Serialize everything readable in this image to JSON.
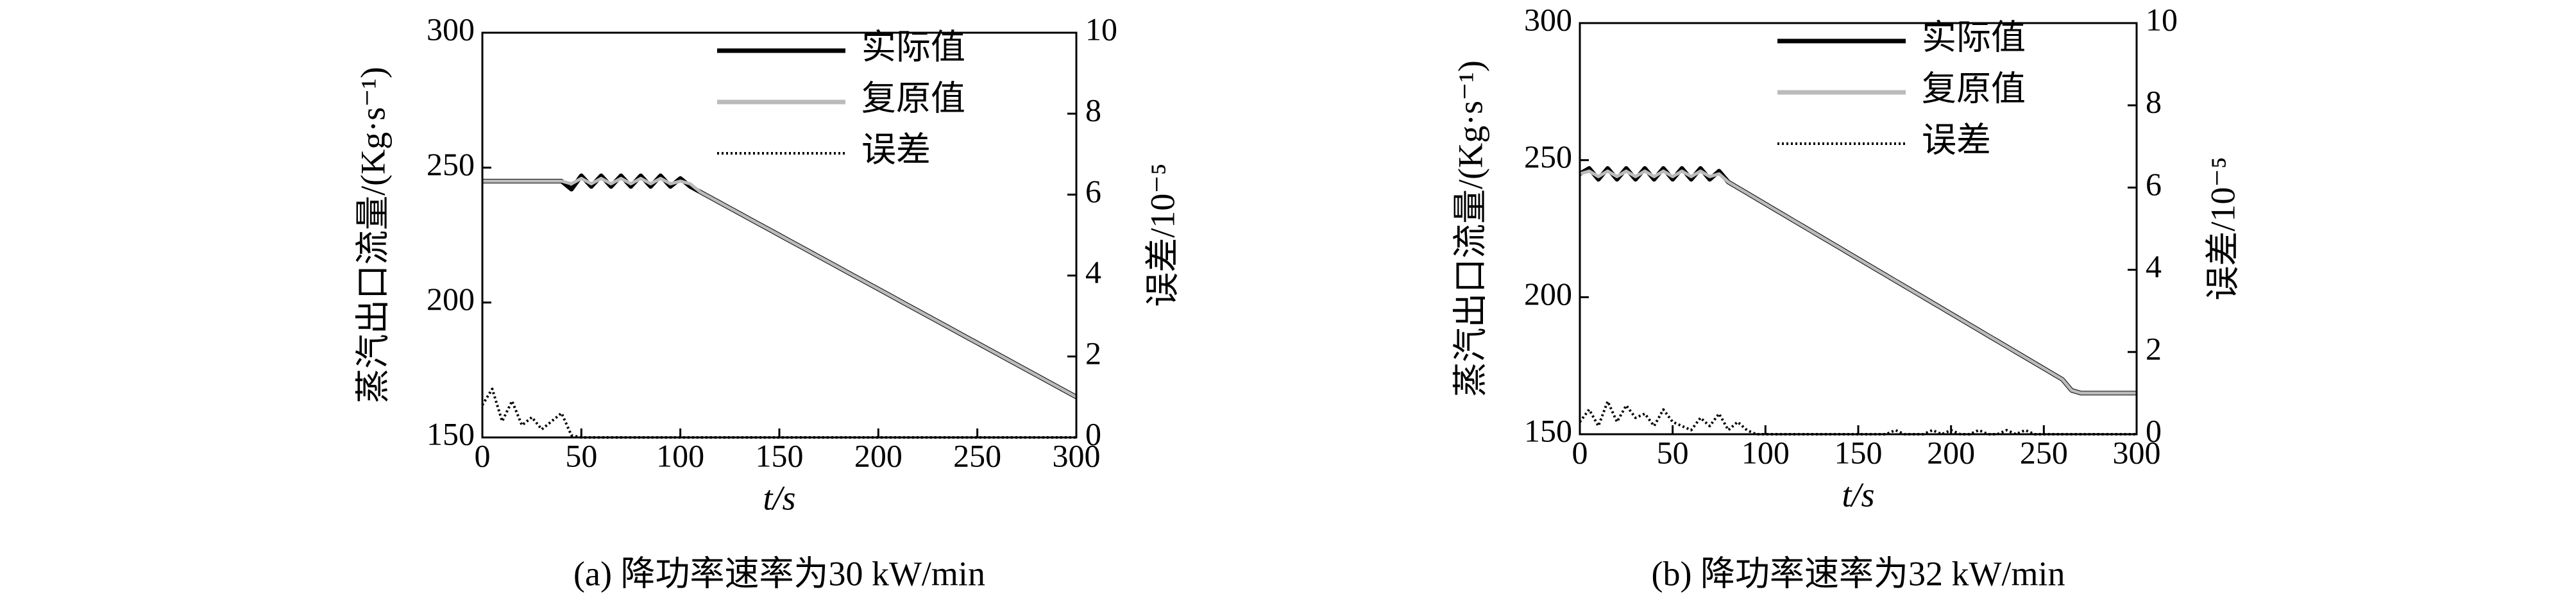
{
  "chart_data": [
    {
      "type": "line",
      "caption": "(a) 降功率速率为30 kW/min",
      "x_label": "t/s",
      "y_label": "蒸汽出口流量/(Kg·s⁻¹)",
      "y2_label": "误差/10⁻⁵",
      "xlim": [
        0,
        300
      ],
      "xticks": [
        0,
        50,
        100,
        150,
        200,
        250,
        300
      ],
      "ylim": [
        150,
        300
      ],
      "yticks": [
        150,
        200,
        250,
        300
      ],
      "y2lim": [
        0,
        10
      ],
      "y2ticks": [
        0,
        2,
        4,
        6,
        8,
        10
      ],
      "x": [
        0,
        5,
        10,
        15,
        20,
        25,
        30,
        35,
        40,
        45,
        50,
        55,
        60,
        65,
        70,
        75,
        80,
        85,
        90,
        95,
        100,
        105,
        110,
        115,
        120,
        125,
        130,
        135,
        140,
        145,
        150,
        155,
        160,
        165,
        170,
        175,
        180,
        185,
        190,
        195,
        200,
        205,
        210,
        215,
        220,
        225,
        230,
        235,
        240,
        245,
        250,
        255,
        260,
        265,
        270,
        275,
        280,
        285,
        290,
        295,
        300
      ],
      "series": [
        {
          "name": "实际值",
          "color": "#000000",
          "style": "solid",
          "values": [
            245,
            245,
            245,
            245,
            245,
            245,
            245,
            245,
            245,
            242,
            247,
            243,
            247,
            243,
            247,
            243,
            247,
            243,
            247,
            243,
            246,
            243,
            241,
            239,
            237,
            235,
            233,
            231,
            229,
            227,
            225,
            223,
            221,
            219,
            217,
            215,
            213,
            211,
            209,
            207,
            205,
            203,
            201,
            199,
            197,
            195,
            193,
            191,
            189,
            187,
            185,
            183,
            181,
            179,
            177,
            175,
            173,
            171,
            169,
            167,
            165
          ]
        },
        {
          "name": "复原值",
          "color": "#bbbbbb",
          "style": "solid",
          "values": [
            245,
            245,
            245,
            245,
            245,
            245,
            245,
            245,
            245,
            244,
            246,
            244,
            246,
            244,
            246,
            244,
            246,
            244,
            246,
            244,
            245,
            244,
            241,
            239,
            237,
            235,
            233,
            231,
            229,
            227,
            225,
            223,
            221,
            219,
            217,
            215,
            213,
            211,
            209,
            207,
            205,
            203,
            201,
            199,
            197,
            195,
            193,
            191,
            189,
            187,
            185,
            183,
            181,
            179,
            177,
            175,
            173,
            171,
            169,
            167,
            165
          ]
        },
        {
          "name": "误差",
          "color": "#000000",
          "style": "dotted",
          "axis": "y2",
          "values": [
            0.8,
            1.2,
            0.4,
            0.9,
            0.3,
            0.5,
            0.2,
            0.4,
            0.6,
            0.05,
            0,
            0,
            0,
            0,
            0,
            0,
            0,
            0,
            0,
            0,
            0,
            0,
            0,
            0,
            0,
            0,
            0,
            0,
            0,
            0,
            0,
            0,
            0,
            0,
            0,
            0,
            0,
            0,
            0,
            0,
            0,
            0,
            0,
            0,
            0,
            0,
            0,
            0,
            0,
            0,
            0,
            0,
            0,
            0,
            0,
            0,
            0,
            0,
            0,
            0,
            0
          ]
        }
      ]
    },
    {
      "type": "line",
      "caption": "(b) 降功率速率为32 kW/min",
      "x_label": "t/s",
      "y_label": "蒸汽出口流量/(Kg·s⁻¹)",
      "y2_label": "误差/10⁻⁵",
      "xlim": [
        0,
        300
      ],
      "xticks": [
        0,
        50,
        100,
        150,
        200,
        250,
        300
      ],
      "ylim": [
        150,
        300
      ],
      "yticks": [
        150,
        200,
        250,
        300
      ],
      "y2lim": [
        0,
        10
      ],
      "y2ticks": [
        0,
        2,
        4,
        6,
        8,
        10
      ],
      "x": [
        0,
        5,
        10,
        15,
        20,
        25,
        30,
        35,
        40,
        45,
        50,
        55,
        60,
        65,
        70,
        75,
        80,
        85,
        90,
        95,
        100,
        105,
        110,
        115,
        120,
        125,
        130,
        135,
        140,
        145,
        150,
        155,
        160,
        165,
        170,
        175,
        180,
        185,
        190,
        195,
        200,
        205,
        210,
        215,
        220,
        225,
        230,
        235,
        240,
        245,
        250,
        255,
        260,
        265,
        270,
        275,
        280,
        285,
        290,
        295,
        300
      ],
      "series": [
        {
          "name": "实际值",
          "color": "#000000",
          "style": "solid",
          "values": [
            245,
            247,
            243,
            247,
            243,
            247,
            243,
            247,
            243,
            247,
            243,
            247,
            243,
            247,
            243,
            246,
            242,
            240,
            238,
            236,
            234,
            232,
            230,
            228,
            226,
            224,
            222,
            220,
            218,
            216,
            214,
            212,
            210,
            208,
            206,
            204,
            202,
            200,
            198,
            196,
            194,
            192,
            190,
            188,
            186,
            184,
            182,
            180,
            178,
            176,
            174,
            172,
            170,
            166,
            165,
            165,
            165,
            165,
            165,
            165,
            165
          ]
        },
        {
          "name": "复原值",
          "color": "#bbbbbb",
          "style": "solid",
          "values": [
            245,
            246,
            244,
            246,
            244,
            246,
            244,
            246,
            244,
            246,
            244,
            246,
            244,
            246,
            244,
            245,
            242,
            240,
            238,
            236,
            234,
            232,
            230,
            228,
            226,
            224,
            222,
            220,
            218,
            216,
            214,
            212,
            210,
            208,
            206,
            204,
            202,
            200,
            198,
            196,
            194,
            192,
            190,
            188,
            186,
            184,
            182,
            180,
            178,
            176,
            174,
            172,
            170,
            166,
            165,
            165,
            165,
            165,
            165,
            165,
            165
          ]
        },
        {
          "name": "误差",
          "color": "#000000",
          "style": "dotted",
          "axis": "y2",
          "values": [
            0.3,
            0.6,
            0.2,
            0.8,
            0.3,
            0.7,
            0.4,
            0.5,
            0.2,
            0.6,
            0.3,
            0.2,
            0.1,
            0.4,
            0.2,
            0.5,
            0.1,
            0.3,
            0.1,
            0,
            0,
            0,
            0,
            0,
            0,
            0,
            0,
            0,
            0,
            0,
            0,
            0,
            0,
            0,
            0.1,
            0,
            0,
            0,
            0.1,
            0,
            0.1,
            0,
            0,
            0.1,
            0,
            0,
            0.1,
            0,
            0.1,
            0,
            0,
            0,
            0,
            0,
            0,
            0,
            0,
            0,
            0,
            0,
            0
          ]
        }
      ]
    }
  ]
}
